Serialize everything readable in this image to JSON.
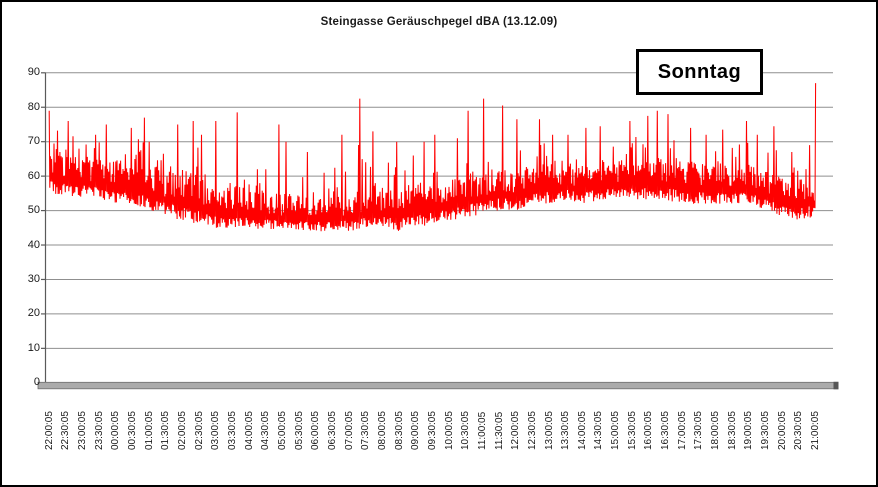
{
  "window": {
    "background": "#ffffff",
    "border_color": "#000000"
  },
  "chart_data": {
    "type": "line",
    "title": "Steingasse Geräuschpegel dBA (13.12.09)",
    "annotation": "Sonntag",
    "xlabel": "",
    "ylabel": "",
    "unit": "dBA",
    "ylim": [
      0,
      90
    ],
    "ytick_step": 10,
    "y_ticks": [
      0,
      10,
      20,
      30,
      40,
      50,
      60,
      70,
      80,
      90
    ],
    "grid": true,
    "legend_position": "none",
    "x_tick_labels": [
      "22:00:05",
      "22:30:05",
      "23:00:05",
      "23:30:05",
      "00:00:05",
      "00:30:05",
      "01:00:05",
      "01:30:05",
      "02:00:05",
      "02:30:05",
      "03:00:05",
      "03:30:05",
      "04:00:05",
      "04:30:05",
      "05:00:05",
      "05:30:05",
      "06:00:05",
      "06:30:05",
      "07:00:05",
      "07:30:05",
      "08:00:05",
      "08:30:05",
      "09:00:05",
      "09:30:05",
      "10:00:05",
      "10:30:05",
      "11:00:05",
      "11:30:05",
      "12:00:05",
      "12:30:05",
      "13:00:05",
      "13:30:05",
      "14:00:05",
      "14:30:05",
      "15:00:05",
      "15:30:05",
      "16:00:05",
      "16:30:05",
      "17:00:05",
      "17:30:05",
      "18:00:05",
      "18:30:05",
      "19:00:05",
      "19:30:05",
      "20:00:05",
      "20:30:05",
      "21:00:05"
    ],
    "series": [
      {
        "name": "Geräuschpegel dBA",
        "color": "#ff0000",
        "envelope_by_half_hour": [
          {
            "t": "22:00:05",
            "min": 55,
            "typ_max": 68,
            "peak": 79
          },
          {
            "t": "22:30:05",
            "min": 54,
            "typ_max": 67,
            "peak": 76
          },
          {
            "t": "23:00:05",
            "min": 54,
            "typ_max": 66,
            "peak": 72
          },
          {
            "t": "23:30:05",
            "min": 53,
            "typ_max": 66,
            "peak": 75
          },
          {
            "t": "00:00:05",
            "min": 52,
            "typ_max": 65,
            "peak": 74
          },
          {
            "t": "00:30:05",
            "min": 52,
            "typ_max": 66,
            "peak": 77
          },
          {
            "t": "01:00:05",
            "min": 50,
            "typ_max": 64,
            "peak": 70
          },
          {
            "t": "01:30:05",
            "min": 48,
            "typ_max": 63,
            "peak": 75
          },
          {
            "t": "02:00:05",
            "min": 47,
            "typ_max": 62,
            "peak": 76
          },
          {
            "t": "02:30:05",
            "min": 46,
            "typ_max": 60,
            "peak": 72
          },
          {
            "t": "03:00:05",
            "min": 45,
            "typ_max": 58,
            "peak": 76
          },
          {
            "t": "03:30:05",
            "min": 45,
            "typ_max": 58,
            "peak": 78.5
          },
          {
            "t": "04:00:05",
            "min": 44.5,
            "typ_max": 56,
            "peak": 62
          },
          {
            "t": "04:30:05",
            "min": 44.5,
            "typ_max": 56,
            "peak": 75
          },
          {
            "t": "05:00:05",
            "min": 44,
            "typ_max": 55,
            "peak": 70
          },
          {
            "t": "05:30:05",
            "min": 44,
            "typ_max": 55,
            "peak": 67
          },
          {
            "t": "06:00:05",
            "min": 44,
            "typ_max": 54,
            "peak": 61
          },
          {
            "t": "06:30:05",
            "min": 44,
            "typ_max": 55,
            "peak": 72
          },
          {
            "t": "07:00:05",
            "min": 44,
            "typ_max": 55,
            "peak": 82.5
          },
          {
            "t": "07:30:05",
            "min": 45,
            "typ_max": 56,
            "peak": 73
          },
          {
            "t": "08:00:05",
            "min": 45,
            "typ_max": 57,
            "peak": 70
          },
          {
            "t": "08:30:05",
            "min": 44,
            "typ_max": 57,
            "peak": 66
          },
          {
            "t": "09:00:05",
            "min": 45,
            "typ_max": 58,
            "peak": 70
          },
          {
            "t": "09:30:05",
            "min": 46,
            "typ_max": 59,
            "peak": 72
          },
          {
            "t": "10:00:05",
            "min": 47,
            "typ_max": 60,
            "peak": 71
          },
          {
            "t": "10:30:05",
            "min": 48,
            "typ_max": 61,
            "peak": 79
          },
          {
            "t": "11:00:05",
            "min": 49,
            "typ_max": 62,
            "peak": 82.5
          },
          {
            "t": "11:30:05",
            "min": 50,
            "typ_max": 63,
            "peak": 80.5
          },
          {
            "t": "12:00:05",
            "min": 50,
            "typ_max": 63,
            "peak": 76.5
          },
          {
            "t": "12:30:05",
            "min": 52,
            "typ_max": 64,
            "peak": 76.5
          },
          {
            "t": "13:00:05",
            "min": 52,
            "typ_max": 64,
            "peak": 72
          },
          {
            "t": "13:30:05",
            "min": 53,
            "typ_max": 64,
            "peak": 72
          },
          {
            "t": "14:00:05",
            "min": 52,
            "typ_max": 64,
            "peak": 74
          },
          {
            "t": "14:30:05",
            "min": 53,
            "typ_max": 65,
            "peak": 74.5
          },
          {
            "t": "15:00:05",
            "min": 53,
            "typ_max": 65,
            "peak": 76
          },
          {
            "t": "15:30:05",
            "min": 53,
            "typ_max": 65,
            "peak": 77.5
          },
          {
            "t": "16:00:05",
            "min": 53,
            "typ_max": 66,
            "peak": 79
          },
          {
            "t": "16:30:05",
            "min": 53,
            "typ_max": 66,
            "peak": 78
          },
          {
            "t": "17:00:05",
            "min": 52,
            "typ_max": 65,
            "peak": 74
          },
          {
            "t": "17:30:05",
            "min": 52,
            "typ_max": 64,
            "peak": 72
          },
          {
            "t": "18:00:05",
            "min": 52,
            "typ_max": 64,
            "peak": 73.5
          },
          {
            "t": "18:30:05",
            "min": 52,
            "typ_max": 64,
            "peak": 76
          },
          {
            "t": "19:00:05",
            "min": 52,
            "typ_max": 63,
            "peak": 72
          },
          {
            "t": "19:30:05",
            "min": 50,
            "typ_max": 62,
            "peak": 74.5
          },
          {
            "t": "20:00:05",
            "min": 48,
            "typ_max": 60,
            "peak": 67
          },
          {
            "t": "20:30:05",
            "min": 47,
            "typ_max": 62,
            "peak": 69
          },
          {
            "t": "21:00:05",
            "min": 48,
            "typ_max": 60,
            "peak": 87
          }
        ]
      }
    ],
    "notable_peaks": [
      {
        "t": "22:00",
        "v": 79
      },
      {
        "t": "03:40",
        "v": 78.5
      },
      {
        "t": "07:05",
        "v": 82.5
      },
      {
        "t": "10:35",
        "v": 79
      },
      {
        "t": "11:05",
        "v": 82.5
      },
      {
        "t": "11:40",
        "v": 80.5
      },
      {
        "t": "16:00",
        "v": 79
      },
      {
        "t": "21:00",
        "v": 87
      }
    ],
    "colors": {
      "series": "#ff0000",
      "grid": "#8f8f8f",
      "axis": "#5a5a5a",
      "baseline_bar_fill": "#ababab",
      "baseline_bar_edge": "#6f6f6f",
      "baseline_bar_cap": "#565656",
      "label_text": "#1a1a1a"
    }
  }
}
